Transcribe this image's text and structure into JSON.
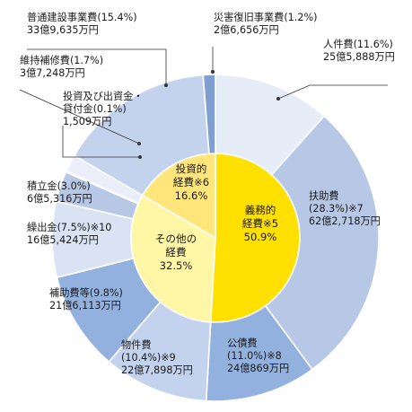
{
  "chart_data": {
    "type": "pie",
    "title": "",
    "outer_ring": [
      {
        "category": "人件費",
        "percent": 11.6,
        "amount": "25億5,888万円",
        "label_lines": [
          "人件費(11.6%)",
          "25億5,888万円"
        ],
        "group": "義務的経費"
      },
      {
        "category": "扶助費",
        "percent": 28.3,
        "amount": "62億2,718万円",
        "label_lines": [
          "扶助費",
          "(28.3%)※7",
          "62億2,718万円"
        ],
        "group": "義務的経費"
      },
      {
        "category": "公債費",
        "percent": 11.0,
        "amount": "24億869万円",
        "label_lines": [
          "公債費",
          "(11.0%)※8",
          "24億869万円"
        ],
        "group": "義務的経費"
      },
      {
        "category": "物件費",
        "percent": 10.4,
        "amount": "22億7,898万円",
        "label_lines": [
          "物件費",
          "(10.4%)※9",
          "22億7,898万円"
        ],
        "group": "その他の経費"
      },
      {
        "category": "補助費等",
        "percent": 9.8,
        "amount": "21億6,113万円",
        "label_lines": [
          "補助費等(9.8%)",
          "21億6,113万円"
        ],
        "group": "その他の経費"
      },
      {
        "category": "繰出金",
        "percent": 7.5,
        "amount": "16億5,424万円",
        "label_lines": [
          "繰出金(7.5%)※10",
          "16億5,424万円"
        ],
        "group": "その他の経費"
      },
      {
        "category": "積立金",
        "percent": 3.0,
        "amount": "6億5,316万円",
        "label_lines": [
          "積立金(3.0%)",
          "6億5,316万円"
        ],
        "group": "その他の経費"
      },
      {
        "category": "投資及び出資金・貸付金",
        "percent": 0.1,
        "amount": "1,509万円",
        "label_lines": [
          "投資及び出資金・",
          "貸付金(0.1%)",
          "1,509万円"
        ],
        "group": "その他の経費"
      },
      {
        "category": "維持補修費",
        "percent": 1.7,
        "amount": "3億7,248万円",
        "label_lines": [
          "維持補修費(1.7%)",
          "3億7,248万円"
        ],
        "group": "その他の経費"
      },
      {
        "category": "普通建設事業費",
        "percent": 15.4,
        "amount": "33億9,635万円",
        "label_lines": [
          "普通建設事業費(15.4%)",
          "33億9,635万円"
        ],
        "group": "投資的経費"
      },
      {
        "category": "災害復旧事業費",
        "percent": 1.2,
        "amount": "2億6,656万円",
        "label_lines": [
          "災害復旧事業費(1.2%)",
          "2億6,656万円"
        ],
        "group": "投資的経費"
      }
    ],
    "inner_ring": [
      {
        "category": "義務的経費",
        "percent": 50.9,
        "label_lines": [
          "義務的",
          "経費※5",
          "50.9%"
        ],
        "color": "#ffe000"
      },
      {
        "category": "その他の経費",
        "percent": 32.5,
        "label_lines": [
          "その他の",
          "経費",
          "32.5%"
        ],
        "color": "#fff7a6"
      },
      {
        "category": "投資的経費",
        "percent": 16.6,
        "label_lines": [
          "投資的",
          "経費※6",
          "16.6%"
        ],
        "color": "#ffe57a"
      }
    ],
    "colors": {
      "outer": [
        "#e6edf8",
        "#b7c8e6",
        "#93b1de",
        "#c3d3ee",
        "#93b1de",
        "#d9e3f3",
        "#b7c8e6",
        "#f4f6fb",
        "#e9eef8",
        "#c3d3ee",
        "#7f9fd1"
      ],
      "border": "#ffffff",
      "inner_border": "#ffffff"
    }
  }
}
